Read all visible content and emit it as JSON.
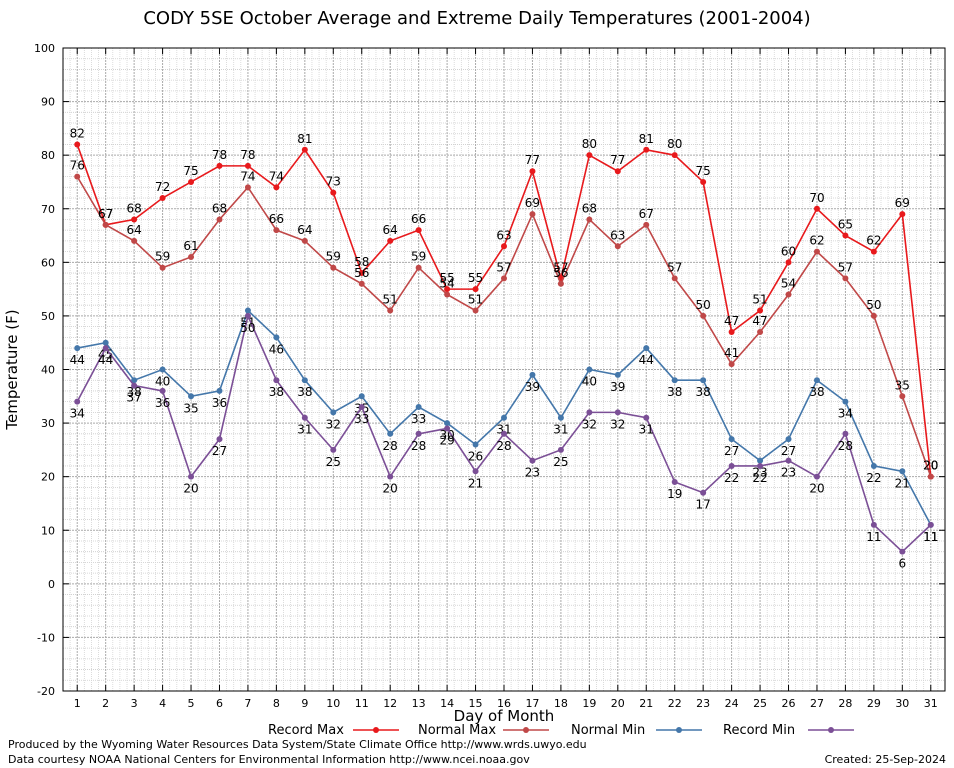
{
  "chart_data": {
    "type": "line",
    "title": "CODY 5SE October Average and Extreme Daily Temperatures (2001-2004)",
    "xlabel": "Day of Month",
    "ylabel": "Temperature (F)",
    "ylim": [
      -20,
      100
    ],
    "xlim": [
      0.5,
      31.5
    ],
    "yticks": [
      -20,
      -10,
      0,
      10,
      20,
      30,
      40,
      50,
      60,
      70,
      80,
      90,
      100
    ],
    "x": [
      1,
      2,
      3,
      4,
      5,
      6,
      7,
      8,
      9,
      10,
      11,
      12,
      13,
      14,
      15,
      16,
      17,
      18,
      19,
      20,
      21,
      22,
      23,
      24,
      25,
      26,
      27,
      28,
      29,
      30,
      31
    ],
    "grid": true,
    "legend_position": "bottom",
    "series": [
      {
        "name": "Record Max",
        "color": "#e8191c",
        "values": [
          82,
          67,
          68,
          72,
          75,
          78,
          78,
          74,
          81,
          73,
          58,
          64,
          66,
          55,
          55,
          63,
          77,
          57,
          80,
          77,
          81,
          80,
          75,
          47,
          51,
          60,
          70,
          65,
          62,
          69,
          20
        ]
      },
      {
        "name": "Normal Max",
        "color": "#c04848",
        "values": [
          76,
          67,
          64,
          59,
          61,
          68,
          74,
          66,
          64,
          59,
          56,
          51,
          59,
          54,
          51,
          57,
          69,
          56,
          68,
          63,
          67,
          57,
          50,
          41,
          47,
          54,
          62,
          57,
          50,
          35,
          20
        ]
      },
      {
        "name": "Normal Min",
        "color": "#4477aa",
        "values": [
          44,
          45,
          38,
          40,
          35,
          36,
          51,
          46,
          38,
          32,
          35,
          28,
          33,
          30,
          26,
          31,
          39,
          31,
          40,
          39,
          44,
          38,
          38,
          27,
          23,
          27,
          38,
          34,
          22,
          21,
          11
        ]
      },
      {
        "name": "Record Min",
        "color": "#7b4f96",
        "values": [
          34,
          44,
          37,
          36,
          20,
          27,
          50,
          38,
          31,
          25,
          33,
          20,
          28,
          29,
          21,
          28,
          23,
          25,
          32,
          32,
          31,
          19,
          17,
          22,
          22,
          23,
          20,
          28,
          11,
          6,
          11
        ]
      }
    ]
  },
  "footer": {
    "produced_by": "Produced by the Wyoming Water Resources Data System/State Climate Office http://www.wrds.uwyo.edu",
    "courtesy": "Data courtesy NOAA National Centers for Environmental Information http://www.ncei.noaa.gov",
    "created": "Created:  25-Sep-2024"
  }
}
